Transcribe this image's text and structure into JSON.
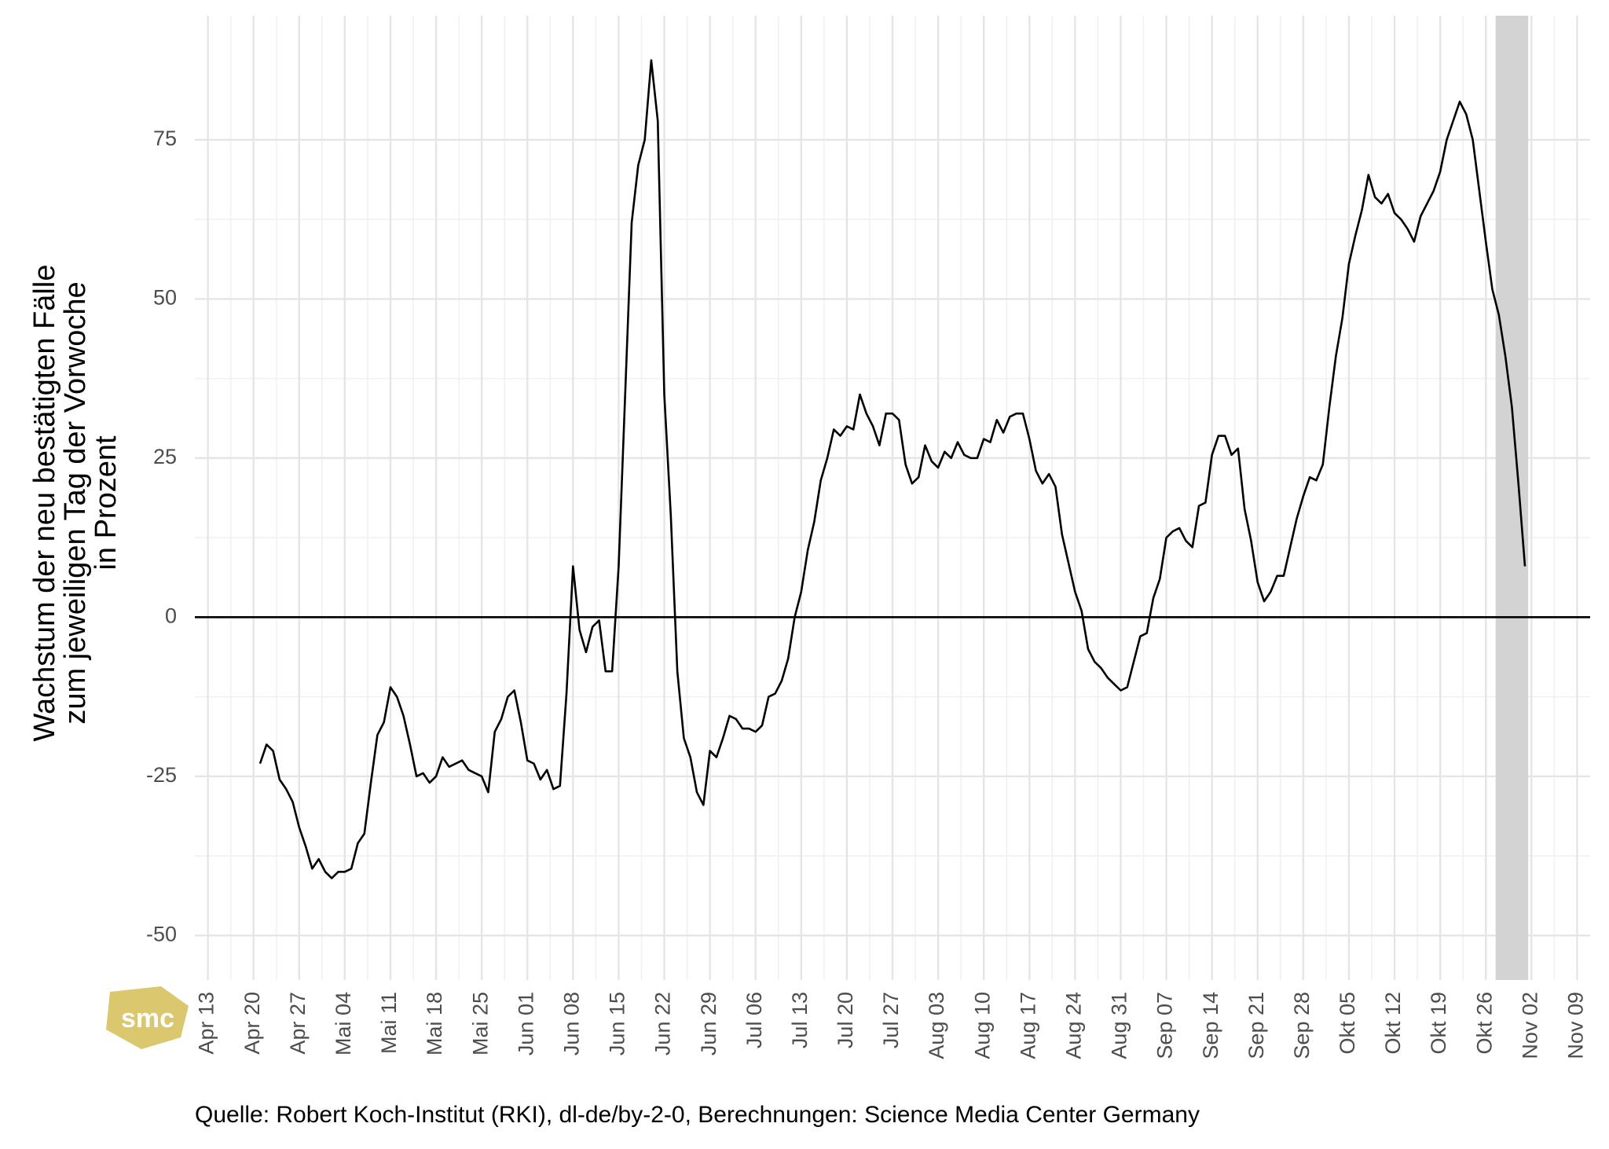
{
  "chart_data": {
    "type": "line",
    "y_label": [
      "Wachstum der neu bestätigten Fälle",
      "zum jeweiligen Tag der Vorwoche",
      "in Prozent"
    ],
    "caption": "Quelle: Robert Koch-Institut (RKI), dl-de/by-2-0, Berechnungen: Science Media Center Germany",
    "logo": "smc",
    "color": "#000000",
    "grid": true,
    "shaded_region": [
      "Okt 28",
      "Nov 01"
    ],
    "shade_color": "#d3d3d3",
    "x": [
      "Apr 21",
      "Apr 22",
      "Apr 23",
      "Apr 24",
      "Apr 25",
      "Apr 26",
      "Apr 27",
      "Apr 28",
      "Apr 29",
      "Apr 30",
      "Mai 01",
      "Mai 02",
      "Mai 03",
      "Mai 04",
      "Mai 05",
      "Mai 06",
      "Mai 07",
      "Mai 08",
      "Mai 09",
      "Mai 10",
      "Mai 11",
      "Mai 12",
      "Mai 13",
      "Mai 14",
      "Mai 15",
      "Mai 16",
      "Mai 17",
      "Mai 18",
      "Mai 19",
      "Mai 20",
      "Mai 21",
      "Mai 22",
      "Mai 23",
      "Mai 24",
      "Mai 25",
      "Mai 26",
      "Mai 27",
      "Mai 28",
      "Mai 29",
      "Mai 30",
      "Mai 31",
      "Jun 01",
      "Jun 02",
      "Jun 03",
      "Jun 04",
      "Jun 05",
      "Jun 06",
      "Jun 07",
      "Jun 08",
      "Jun 09",
      "Jun 10",
      "Jun 11",
      "Jun 12",
      "Jun 13",
      "Jun 14",
      "Jun 15",
      "Jun 16",
      "Jun 17",
      "Jun 18",
      "Jun 19",
      "Jun 20",
      "Jun 21",
      "Jun 22",
      "Jun 23",
      "Jun 24",
      "Jun 25",
      "Jun 26",
      "Jun 27",
      "Jun 28",
      "Jun 29",
      "Jun 30",
      "Jul 01",
      "Jul 02",
      "Jul 03",
      "Jul 04",
      "Jul 05",
      "Jul 06",
      "Jul 07",
      "Jul 08",
      "Jul 09",
      "Jul 10",
      "Jul 11",
      "Jul 12",
      "Jul 13",
      "Jul 14",
      "Jul 15",
      "Jul 16",
      "Jul 17",
      "Jul 18",
      "Jul 19",
      "Jul 20",
      "Jul 21",
      "Jul 22",
      "Jul 23",
      "Jul 24",
      "Jul 25",
      "Jul 26",
      "Jul 27",
      "Jul 28",
      "Jul 29",
      "Jul 30",
      "Jul 31",
      "Aug 01",
      "Aug 02",
      "Aug 03",
      "Aug 04",
      "Aug 05",
      "Aug 06",
      "Aug 07",
      "Aug 08",
      "Aug 09",
      "Aug 10",
      "Aug 11",
      "Aug 12",
      "Aug 13",
      "Aug 14",
      "Aug 15",
      "Aug 16",
      "Aug 17",
      "Aug 18",
      "Aug 19",
      "Aug 20",
      "Aug 21",
      "Aug 22",
      "Aug 23",
      "Aug 24",
      "Aug 25",
      "Aug 26",
      "Aug 27",
      "Aug 28",
      "Aug 29",
      "Aug 30",
      "Aug 31",
      "Sep 01",
      "Sep 02",
      "Sep 03",
      "Sep 04",
      "Sep 05",
      "Sep 06",
      "Sep 07",
      "Sep 08",
      "Sep 09",
      "Sep 10",
      "Sep 11",
      "Sep 12",
      "Sep 13",
      "Sep 14",
      "Sep 15",
      "Sep 16",
      "Sep 17",
      "Sep 18",
      "Sep 19",
      "Sep 20",
      "Sep 21",
      "Sep 22",
      "Sep 23",
      "Sep 24",
      "Sep 25",
      "Sep 26",
      "Sep 27",
      "Sep 28",
      "Sep 29",
      "Sep 30",
      "Okt 01",
      "Okt 02",
      "Okt 03",
      "Okt 04",
      "Okt 05",
      "Okt 06",
      "Okt 07",
      "Okt 08",
      "Okt 09",
      "Okt 10",
      "Okt 11",
      "Okt 12",
      "Okt 13",
      "Okt 14",
      "Okt 15",
      "Okt 16",
      "Okt 17",
      "Okt 18",
      "Okt 19",
      "Okt 20",
      "Okt 21",
      "Okt 22",
      "Okt 23",
      "Okt 24",
      "Okt 25",
      "Okt 26",
      "Okt 27",
      "Okt 28",
      "Okt 29",
      "Okt 30",
      "Okt 31",
      "Nov 01"
    ],
    "values": [
      -23,
      -20,
      -21,
      -25.5,
      -27,
      -29,
      -33,
      -36,
      -39.5,
      -38,
      -40,
      -41,
      -40,
      -40,
      -39.5,
      -35.5,
      -34,
      -26,
      -18.5,
      -16.5,
      -11,
      -12.5,
      -15.5,
      -20,
      -25,
      -24.5,
      -26,
      -25,
      -22,
      -23.5,
      -23,
      -22.5,
      -24,
      -24.5,
      -25,
      -27.5,
      -18,
      -16,
      -12.5,
      -11.5,
      -16.5,
      -22.5,
      -23,
      -25.5,
      -24,
      -27,
      -26.5,
      -12,
      8,
      -2,
      -5.5,
      -1.5,
      -0.5,
      -8.5,
      -8.5,
      8,
      35,
      62,
      71,
      75,
      87.5,
      78,
      35,
      16,
      -8.5,
      -19,
      -22,
      -27.5,
      -29.5,
      -21,
      -22,
      -19,
      -15.5,
      -16,
      -17.5,
      -17.5,
      -18,
      -17,
      -12.5,
      -12,
      -10,
      -6.5,
      0,
      4,
      10.5,
      15,
      21.5,
      25,
      29.5,
      28.5,
      30,
      29.5,
      35,
      32,
      30,
      27,
      32,
      32,
      31,
      24,
      21,
      22,
      27,
      24.5,
      23.5,
      26,
      25,
      27.5,
      25.5,
      25,
      25,
      28,
      27.5,
      31,
      29,
      31.5,
      32,
      32,
      28,
      23,
      21,
      22.5,
      20.5,
      13,
      8.5,
      4,
      1,
      -5,
      -7,
      -8,
      -9.5,
      -10.5,
      -11.5,
      -11,
      -7,
      -3,
      -2.5,
      3,
      6,
      12.5,
      13.5,
      14,
      12,
      11,
      17.5,
      18,
      25.5,
      28.5,
      28.5,
      25.5,
      26.5,
      17,
      12,
      5.5,
      2.5,
      4,
      6.5,
      6.5,
      11,
      15.5,
      19,
      22,
      21.5,
      24,
      33,
      41,
      47,
      55.5,
      60,
      64,
      69.5,
      66,
      65,
      66.5,
      63.5,
      62.5,
      61,
      59,
      63,
      65,
      67,
      70,
      75,
      78,
      81,
      79,
      75,
      67,
      59,
      51.5,
      47.5,
      41,
      33,
      21,
      8
    ],
    "xlim": [
      "Apr 11",
      "Nov 11"
    ],
    "xticks": [
      "Apr 13",
      "Apr 20",
      "Apr 27",
      "Mai 04",
      "Mai 11",
      "Mai 18",
      "Mai 25",
      "Jun 01",
      "Jun 08",
      "Jun 15",
      "Jun 22",
      "Jun 29",
      "Jul 06",
      "Jul 13",
      "Jul 20",
      "Jul 27",
      "Aug 03",
      "Aug 10",
      "Aug 17",
      "Aug 24",
      "Aug 31",
      "Sep 07",
      "Sep 14",
      "Sep 21",
      "Sep 28",
      "Okt 05",
      "Okt 12",
      "Okt 19",
      "Okt 26",
      "Nov 02",
      "Nov 09"
    ],
    "ylim": [
      -57,
      94.5
    ],
    "yticks": [
      -50,
      -25,
      0,
      25,
      50,
      75
    ]
  }
}
